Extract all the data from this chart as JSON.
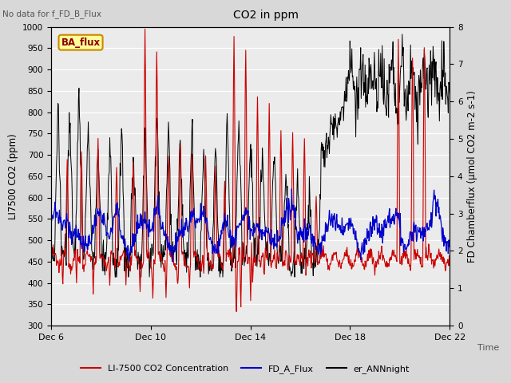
{
  "title": "CO2 in ppm",
  "top_left_text": "No data for f_FD_B_Flux",
  "ylabel_left": "LI7500 CO2 (ppm)",
  "ylabel_right": "FD Chamberflux (μmol CO2 m-2 s-1)",
  "xlabel": "Time",
  "ylim_left": [
    300,
    1000
  ],
  "ylim_right": [
    0.0,
    8.0
  ],
  "yticks_left": [
    300,
    350,
    400,
    450,
    500,
    550,
    600,
    650,
    700,
    750,
    800,
    850,
    900,
    950,
    1000
  ],
  "yticks_right": [
    0.0,
    1.0,
    2.0,
    3.0,
    4.0,
    5.0,
    6.0,
    7.0,
    8.0
  ],
  "xtick_labels": [
    "Dec 6",
    "Dec 10",
    "Dec 14",
    "Dec 18",
    "Dec 22"
  ],
  "xtick_positions": [
    0,
    4,
    8,
    12,
    16
  ],
  "bg_color": "#d8d8d8",
  "plot_bg_color": "#ebebeb",
  "legend_label_red": "LI-7500 CO2 Concentration",
  "legend_label_blue": "FD_A_Flux",
  "legend_label_black": "er_ANNnight",
  "box_label": "BA_flux",
  "box_facecolor": "#ffff99",
  "box_edgecolor": "#cc8800",
  "line_color_red": "#cc0000",
  "line_color_blue": "#0000cc",
  "line_color_black": "#000000",
  "seed": 12345
}
